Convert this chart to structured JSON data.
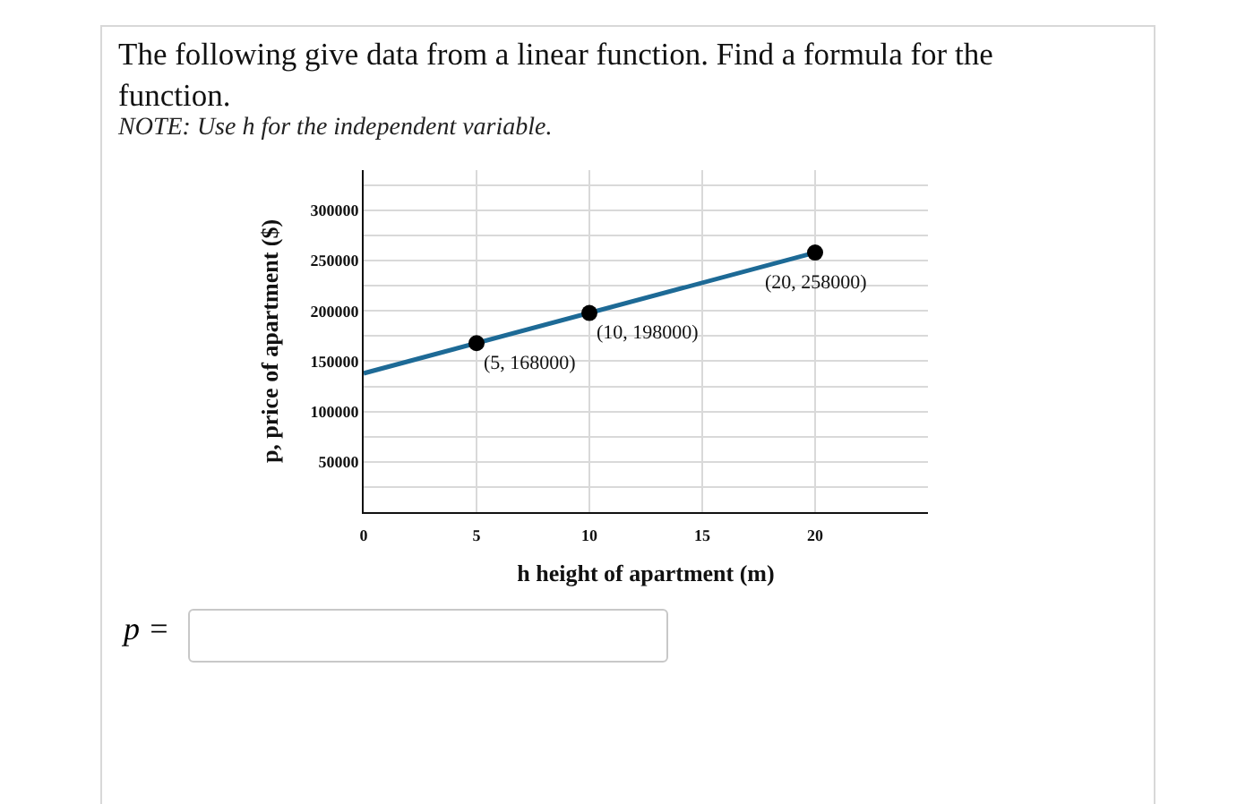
{
  "chart_data": {
    "type": "line",
    "title": "The following give data from a linear function. Find a formula for the function.",
    "subtitle": "NOTE: Use h for the independent variable.",
    "xlabel": "h height of apartment (m)",
    "ylabel": "p, price of apartment ($)",
    "series": [
      {
        "color": "#1d6a96",
        "x": [
          0,
          20
        ],
        "values": [
          138000,
          258000
        ],
        "marker": "none"
      },
      {
        "type": "scatter",
        "color": "#000000",
        "x": [
          5,
          10,
          20
        ],
        "values": [
          168000,
          198000,
          258000
        ],
        "marker": "circle"
      }
    ],
    "xlim": [
      0,
      25
    ],
    "xticks": [
      0,
      5,
      10,
      15,
      20
    ],
    "ylim": [
      0,
      340000
    ],
    "yticks": [
      {
        "value": 25000,
        "label": null
      },
      50000,
      {
        "value": 75000,
        "label": null
      },
      100000,
      {
        "value": 125000,
        "label": null
      },
      150000,
      {
        "value": 175000,
        "label": null
      },
      200000,
      {
        "value": 225000,
        "label": null
      },
      250000,
      {
        "value": 275000,
        "label": null
      },
      300000,
      {
        "value": 325000,
        "label": null
      }
    ],
    "grid": true,
    "annotations": [
      {
        "text": "(5, 168000)",
        "x": 5,
        "y": 168000
      },
      {
        "text": "(10, 198000)",
        "x": 10,
        "y": 198000
      },
      {
        "text": "(20, 258000)",
        "x": 20,
        "y": 258000
      },
      "p ="
    ]
  }
}
